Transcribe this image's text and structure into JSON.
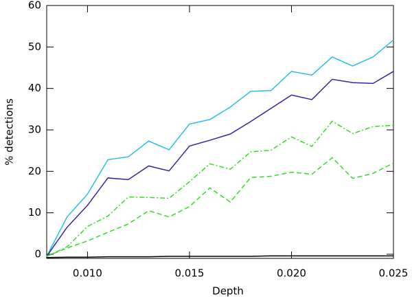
{
  "chart_data": {
    "type": "line",
    "xlabel": "Depth",
    "ylabel": "% detections",
    "x": [
      0.008,
      0.009,
      0.01,
      0.011,
      0.012,
      0.013,
      0.014,
      0.015,
      0.016,
      0.017,
      0.018,
      0.019,
      0.02,
      0.021,
      0.022,
      0.023,
      0.024,
      0.025
    ],
    "series": [
      {
        "color": "#22c0ee",
        "dash": "solid",
        "values": [
          -0.5,
          9.0,
          14.5,
          22.8,
          23.5,
          27.3,
          25.2,
          31.4,
          32.5,
          35.5,
          39.3,
          39.5,
          44.1,
          43.2,
          47.6,
          45.4,
          47.6,
          51.7
        ]
      },
      {
        "color": "#3322aa",
        "dash": "solid",
        "values": [
          -0.5,
          6.5,
          11.8,
          18.4,
          18.0,
          21.3,
          20.1,
          26.1,
          27.5,
          29.0,
          32.0,
          35.2,
          38.4,
          37.3,
          42.2,
          41.4,
          41.2,
          44.1
        ]
      },
      {
        "color": "#33dd22",
        "dash": "dashdot",
        "values": [
          -0.5,
          1.8,
          6.7,
          9.2,
          13.8,
          13.7,
          13.5,
          17.5,
          21.8,
          20.5,
          24.7,
          25.1,
          28.3,
          26.0,
          32.1,
          29.1,
          30.8,
          31.1
        ]
      },
      {
        "color": "#33dd22",
        "dash": "dashed",
        "values": [
          -0.5,
          1.5,
          3.2,
          5.3,
          7.3,
          10.5,
          9.0,
          11.5,
          16.0,
          12.6,
          18.5,
          18.8,
          19.8,
          19.3,
          23.3,
          18.3,
          19.5,
          22.0
        ]
      },
      {
        "color": "#000000",
        "dash": "solid",
        "values": [
          -0.8,
          -0.7,
          -0.7,
          -0.6,
          -0.6,
          -0.6,
          -0.5,
          -0.5,
          -0.5,
          -0.5,
          -0.5,
          -0.4,
          -0.4,
          -0.4,
          -0.4,
          -0.4,
          -0.4,
          -0.4
        ]
      }
    ],
    "xlim": [
      0.008,
      0.025
    ],
    "xticks": [
      {
        "value": 0.01,
        "label": "0.010"
      },
      {
        "value": 0.015,
        "label": "0.015"
      },
      {
        "value": 0.02,
        "label": "0.020"
      },
      {
        "value": 0.025,
        "label": "0.025"
      }
    ],
    "ylim": [
      -1,
      60
    ],
    "yticks": [
      0,
      10,
      20,
      30,
      40,
      50,
      60
    ]
  }
}
